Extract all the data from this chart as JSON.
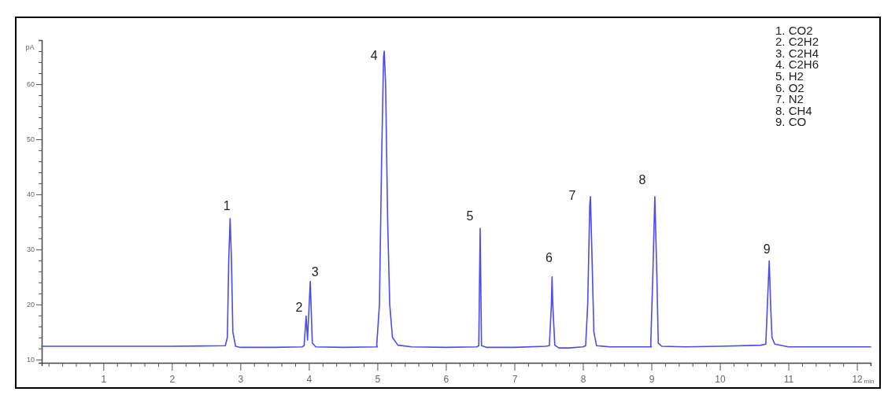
{
  "chart_data": {
    "type": "line",
    "ylabel": "pA",
    "xlabel": "min",
    "x": [
      0.1,
      1.0,
      2.0,
      2.78,
      2.81,
      2.83,
      2.85,
      2.87,
      2.89,
      2.93,
      3.0,
      3.5,
      3.9,
      3.93,
      3.96,
      3.98,
      4.02,
      4.05,
      4.1,
      4.5,
      5.0,
      4.99,
      5.03,
      5.06,
      5.09,
      5.1,
      5.12,
      5.15,
      5.18,
      5.22,
      5.3,
      5.5,
      6.0,
      6.45,
      6.48,
      6.5,
      6.52,
      6.6,
      7.0,
      7.45,
      7.51,
      7.54,
      7.55,
      7.56,
      7.59,
      7.65,
      7.8,
      8.0,
      8.04,
      8.07,
      8.1,
      8.11,
      8.13,
      8.16,
      8.2,
      8.4,
      9.0,
      8.99,
      9.02,
      9.05,
      9.08,
      9.1,
      9.15,
      9.5,
      10.0,
      10.6,
      10.67,
      10.7,
      10.72,
      10.74,
      10.76,
      10.8,
      11.0,
      12.2
    ],
    "series": [
      {
        "color": "#4b4bf0",
        "values": [
          12.4,
          12.4,
          12.4,
          12.5,
          14,
          28,
          35.6,
          28,
          15,
          12.4,
          12.2,
          12.2,
          12.3,
          12.5,
          17.9,
          13.5,
          24.2,
          13,
          12.3,
          12.2,
          12.3,
          12.6,
          20,
          45,
          65,
          66,
          60,
          35,
          20,
          14,
          12.6,
          12.3,
          12.2,
          12.3,
          12.5,
          33.8,
          12.5,
          12.2,
          12.2,
          12.4,
          12.5,
          20,
          25,
          20,
          12.6,
          12.1,
          12.1,
          12.3,
          12.5,
          20,
          38,
          39.6,
          30,
          15,
          12.5,
          12.3,
          12.3,
          12.5,
          25,
          39.6,
          25,
          13,
          12.4,
          12.3,
          12.4,
          12.6,
          12.8,
          22,
          27.9,
          20,
          14,
          12.8,
          12.3,
          12.3
        ]
      }
    ],
    "xlim": [
      0.1,
      12.2
    ],
    "xticks": [
      {
        "value": 0.2,
        "label": null
      },
      {
        "value": 0.4,
        "label": null
      },
      {
        "value": 0.6,
        "label": null
      },
      {
        "value": 0.8,
        "label": null
      },
      1,
      {
        "value": 1.2,
        "label": null
      },
      {
        "value": 1.4,
        "label": null
      },
      {
        "value": 1.6,
        "label": null
      },
      {
        "value": 1.8,
        "label": null
      },
      2,
      {
        "value": 2.2,
        "label": null
      },
      {
        "value": 2.4,
        "label": null
      },
      {
        "value": 2.6,
        "label": null
      },
      {
        "value": 2.8,
        "label": null
      },
      3,
      {
        "value": 3.2,
        "label": null
      },
      {
        "value": 3.4,
        "label": null
      },
      {
        "value": 3.6,
        "label": null
      },
      {
        "value": 3.8,
        "label": null
      },
      4,
      {
        "value": 4.2,
        "label": null
      },
      {
        "value": 4.4,
        "label": null
      },
      {
        "value": 4.6,
        "label": null
      },
      {
        "value": 4.8,
        "label": null
      },
      5,
      {
        "value": 5.2,
        "label": null
      },
      {
        "value": 5.4,
        "label": null
      },
      {
        "value": 5.6,
        "label": null
      },
      {
        "value": 5.8,
        "label": null
      },
      6,
      {
        "value": 6.2,
        "label": null
      },
      {
        "value": 6.4,
        "label": null
      },
      {
        "value": 6.6,
        "label": null
      },
      {
        "value": 6.8,
        "label": null
      },
      7,
      {
        "value": 7.2,
        "label": null
      },
      {
        "value": 7.4,
        "label": null
      },
      {
        "value": 7.6,
        "label": null
      },
      {
        "value": 7.8,
        "label": null
      },
      8,
      {
        "value": 8.2,
        "label": null
      },
      {
        "value": 8.4,
        "label": null
      },
      {
        "value": 8.6,
        "label": null
      },
      {
        "value": 8.8,
        "label": null
      },
      9,
      {
        "value": 9.2,
        "label": null
      },
      {
        "value": 9.4,
        "label": null
      },
      {
        "value": 9.6,
        "label": null
      },
      {
        "value": 9.8,
        "label": null
      },
      10,
      {
        "value": 10.2,
        "label": null
      },
      {
        "value": 10.4,
        "label": null
      },
      {
        "value": 10.6,
        "label": null
      },
      {
        "value": 10.8,
        "label": null
      },
      11,
      {
        "value": 11.2,
        "label": null
      },
      {
        "value": 11.4,
        "label": null
      },
      {
        "value": 11.6,
        "label": null
      },
      {
        "value": 11.8,
        "label": null
      },
      12
    ],
    "ylim": [
      9.4,
      68
    ],
    "yticks": [
      10,
      {
        "value": 12,
        "label": null
      },
      {
        "value": 14,
        "label": null
      },
      {
        "value": 16,
        "label": null
      },
      {
        "value": 18,
        "label": null
      },
      20,
      {
        "value": 22,
        "label": null
      },
      {
        "value": 24,
        "label": null
      },
      {
        "value": 26,
        "label": null
      },
      {
        "value": 28,
        "label": null
      },
      30,
      {
        "value": 32,
        "label": null
      },
      {
        "value": 34,
        "label": null
      },
      {
        "value": 36,
        "label": null
      },
      {
        "value": 38,
        "label": null
      },
      40,
      {
        "value": 42,
        "label": null
      },
      {
        "value": 44,
        "label": null
      },
      {
        "value": 46,
        "label": null
      },
      {
        "value": 48,
        "label": null
      },
      50,
      {
        "value": 52,
        "label": null
      },
      {
        "value": 54,
        "label": null
      },
      {
        "value": 56,
        "label": null
      },
      {
        "value": 58,
        "label": null
      },
      60,
      {
        "value": 62,
        "label": null
      },
      {
        "value": 64,
        "label": null
      },
      {
        "value": 66,
        "label": null
      },
      {
        "value": 68,
        "label": null
      }
    ],
    "grid": false,
    "marker": "none",
    "line_style": "solid",
    "annotations": [
      {
        "text": "1",
        "x": 2.85,
        "y": 35.6
      },
      {
        "text": "2",
        "x": 3.96,
        "y": 17.9
      },
      {
        "text": "3",
        "x": 4.02,
        "y": 24.2
      },
      {
        "text": "4",
        "x": 5.1,
        "y": 66
      },
      {
        "text": "5",
        "x": 6.5,
        "y": 33.8
      },
      {
        "text": "6",
        "x": 7.55,
        "y": 25
      },
      {
        "text": "7",
        "x": 8.11,
        "y": 39.6
      },
      {
        "text": "8",
        "x": 9.05,
        "y": 39.6
      },
      {
        "text": "9",
        "x": 10.72,
        "y": 27.9
      },
      "1. CO2",
      "2. C2H2",
      "3. C2H4",
      "4. C2H6",
      "5. H2",
      "6. O2",
      "7. N2",
      "8. CH4",
      "9. CO"
    ]
  }
}
